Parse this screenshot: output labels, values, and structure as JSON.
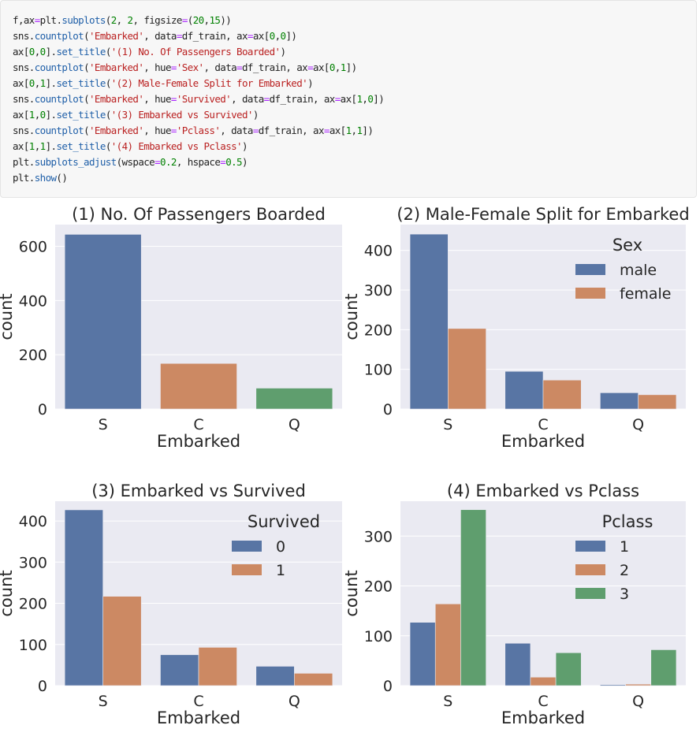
{
  "code_cell": {
    "lines": [
      [
        [
          "name",
          "f"
        ],
        [
          "punc",
          ","
        ],
        [
          "name",
          "ax"
        ],
        [
          "op",
          "="
        ],
        [
          "name",
          "plt"
        ],
        [
          "punc",
          "."
        ],
        [
          "fn",
          "subplots"
        ],
        [
          "punc",
          "("
        ],
        [
          "num",
          "2"
        ],
        [
          "punc",
          ", "
        ],
        [
          "num",
          "2"
        ],
        [
          "punc",
          ", "
        ],
        [
          "name",
          "figsize"
        ],
        [
          "op",
          "="
        ],
        [
          "punc",
          "("
        ],
        [
          "num",
          "20"
        ],
        [
          "punc",
          ","
        ],
        [
          "num",
          "15"
        ],
        [
          "punc",
          "))"
        ]
      ],
      [
        [
          "name",
          "sns"
        ],
        [
          "punc",
          "."
        ],
        [
          "fn",
          "countplot"
        ],
        [
          "punc",
          "("
        ],
        [
          "str",
          "'Embarked'"
        ],
        [
          "punc",
          ", "
        ],
        [
          "name",
          "data"
        ],
        [
          "op",
          "="
        ],
        [
          "name",
          "df_train"
        ],
        [
          "punc",
          ", "
        ],
        [
          "name",
          "ax"
        ],
        [
          "op",
          "="
        ],
        [
          "name",
          "ax"
        ],
        [
          "punc",
          "["
        ],
        [
          "num",
          "0"
        ],
        [
          "punc",
          ","
        ],
        [
          "num",
          "0"
        ],
        [
          "punc",
          "])"
        ]
      ],
      [
        [
          "name",
          "ax"
        ],
        [
          "punc",
          "["
        ],
        [
          "num",
          "0"
        ],
        [
          "punc",
          ","
        ],
        [
          "num",
          "0"
        ],
        [
          "punc",
          "]."
        ],
        [
          "fn",
          "set_title"
        ],
        [
          "punc",
          "("
        ],
        [
          "str",
          "'(1) No. Of Passengers Boarded'"
        ],
        [
          "punc",
          ")"
        ]
      ],
      [
        [
          "name",
          "sns"
        ],
        [
          "punc",
          "."
        ],
        [
          "fn",
          "countplot"
        ],
        [
          "punc",
          "("
        ],
        [
          "str",
          "'Embarked'"
        ],
        [
          "punc",
          ", "
        ],
        [
          "name",
          "hue"
        ],
        [
          "op",
          "="
        ],
        [
          "str",
          "'Sex'"
        ],
        [
          "punc",
          ", "
        ],
        [
          "name",
          "data"
        ],
        [
          "op",
          "="
        ],
        [
          "name",
          "df_train"
        ],
        [
          "punc",
          ", "
        ],
        [
          "name",
          "ax"
        ],
        [
          "op",
          "="
        ],
        [
          "name",
          "ax"
        ],
        [
          "punc",
          "["
        ],
        [
          "num",
          "0"
        ],
        [
          "punc",
          ","
        ],
        [
          "num",
          "1"
        ],
        [
          "punc",
          "])"
        ]
      ],
      [
        [
          "name",
          "ax"
        ],
        [
          "punc",
          "["
        ],
        [
          "num",
          "0"
        ],
        [
          "punc",
          ","
        ],
        [
          "num",
          "1"
        ],
        [
          "punc",
          "]."
        ],
        [
          "fn",
          "set_title"
        ],
        [
          "punc",
          "("
        ],
        [
          "str",
          "'(2) Male-Female Split for Embarked'"
        ],
        [
          "punc",
          ")"
        ]
      ],
      [
        [
          "name",
          "sns"
        ],
        [
          "punc",
          "."
        ],
        [
          "fn",
          "countplot"
        ],
        [
          "punc",
          "("
        ],
        [
          "str",
          "'Embarked'"
        ],
        [
          "punc",
          ", "
        ],
        [
          "name",
          "hue"
        ],
        [
          "op",
          "="
        ],
        [
          "str",
          "'Survived'"
        ],
        [
          "punc",
          ", "
        ],
        [
          "name",
          "data"
        ],
        [
          "op",
          "="
        ],
        [
          "name",
          "df_train"
        ],
        [
          "punc",
          ", "
        ],
        [
          "name",
          "ax"
        ],
        [
          "op",
          "="
        ],
        [
          "name",
          "ax"
        ],
        [
          "punc",
          "["
        ],
        [
          "num",
          "1"
        ],
        [
          "punc",
          ","
        ],
        [
          "num",
          "0"
        ],
        [
          "punc",
          "])"
        ]
      ],
      [
        [
          "name",
          "ax"
        ],
        [
          "punc",
          "["
        ],
        [
          "num",
          "1"
        ],
        [
          "punc",
          ","
        ],
        [
          "num",
          "0"
        ],
        [
          "punc",
          "]."
        ],
        [
          "fn",
          "set_title"
        ],
        [
          "punc",
          "("
        ],
        [
          "str",
          "'(3) Embarked vs Survived'"
        ],
        [
          "punc",
          ")"
        ]
      ],
      [
        [
          "name",
          "sns"
        ],
        [
          "punc",
          "."
        ],
        [
          "fn",
          "countplot"
        ],
        [
          "punc",
          "("
        ],
        [
          "str",
          "'Embarked'"
        ],
        [
          "punc",
          ", "
        ],
        [
          "name",
          "hue"
        ],
        [
          "op",
          "="
        ],
        [
          "str",
          "'Pclass'"
        ],
        [
          "punc",
          ", "
        ],
        [
          "name",
          "data"
        ],
        [
          "op",
          "="
        ],
        [
          "name",
          "df_train"
        ],
        [
          "punc",
          ", "
        ],
        [
          "name",
          "ax"
        ],
        [
          "op",
          "="
        ],
        [
          "name",
          "ax"
        ],
        [
          "punc",
          "["
        ],
        [
          "num",
          "1"
        ],
        [
          "punc",
          ","
        ],
        [
          "num",
          "1"
        ],
        [
          "punc",
          "])"
        ]
      ],
      [
        [
          "name",
          "ax"
        ],
        [
          "punc",
          "["
        ],
        [
          "num",
          "1"
        ],
        [
          "punc",
          ","
        ],
        [
          "num",
          "1"
        ],
        [
          "punc",
          "]."
        ],
        [
          "fn",
          "set_title"
        ],
        [
          "punc",
          "("
        ],
        [
          "str",
          "'(4) Embarked vs Pclass'"
        ],
        [
          "punc",
          ")"
        ]
      ],
      [
        [
          "name",
          "plt"
        ],
        [
          "punc",
          "."
        ],
        [
          "fn",
          "subplots_adjust"
        ],
        [
          "punc",
          "("
        ],
        [
          "name",
          "wspace"
        ],
        [
          "op",
          "="
        ],
        [
          "num",
          "0.2"
        ],
        [
          "punc",
          ", "
        ],
        [
          "name",
          "hspace"
        ],
        [
          "op",
          "="
        ],
        [
          "num",
          "0.5"
        ],
        [
          "punc",
          ")"
        ]
      ],
      [
        [
          "name",
          "plt"
        ],
        [
          "punc",
          "."
        ],
        [
          "fn",
          "show"
        ],
        [
          "punc",
          "()"
        ]
      ]
    ]
  },
  "colors": {
    "plot_bg": "#eaeaf2",
    "grid": "#ffffff",
    "palette": [
      "#5875a4",
      "#cc8963",
      "#5f9e6e"
    ]
  },
  "chart_data": [
    {
      "type": "bar",
      "title": "(1) No. Of Passengers Boarded",
      "xlabel": "Embarked",
      "ylabel": "count",
      "categories": [
        "S",
        "C",
        "Q"
      ],
      "ylim": [
        0,
        680
      ],
      "yticks": [
        0,
        200,
        400,
        600
      ],
      "color_per_category": true,
      "series": [
        {
          "name": "",
          "values": [
            644,
            168,
            77
          ]
        }
      ],
      "legend": null
    },
    {
      "type": "bar",
      "title": "(2) Male-Female Split for Embarked",
      "xlabel": "Embarked",
      "ylabel": "count",
      "categories": [
        "S",
        "C",
        "Q"
      ],
      "ylim": [
        0,
        465
      ],
      "yticks": [
        0,
        100,
        200,
        300,
        400
      ],
      "color_per_category": false,
      "series": [
        {
          "name": "male",
          "values": [
            441,
            95,
            41
          ]
        },
        {
          "name": "female",
          "values": [
            203,
            73,
            36
          ]
        }
      ],
      "legend": {
        "title": "Sex",
        "placement": "top-right"
      }
    },
    {
      "type": "bar",
      "title": "(3) Embarked vs Survived",
      "xlabel": "Embarked",
      "ylabel": "count",
      "categories": [
        "S",
        "C",
        "Q"
      ],
      "ylim": [
        0,
        448
      ],
      "yticks": [
        0,
        100,
        200,
        300,
        400
      ],
      "color_per_category": false,
      "series": [
        {
          "name": "0",
          "values": [
            427,
            75,
            47
          ]
        },
        {
          "name": "1",
          "values": [
            217,
            93,
            30
          ]
        }
      ],
      "legend": {
        "title": "Survived",
        "placement": "top-right"
      }
    },
    {
      "type": "bar",
      "title": "(4) Embarked vs Pclass",
      "xlabel": "Embarked",
      "ylabel": "count",
      "categories": [
        "S",
        "C",
        "Q"
      ],
      "ylim": [
        0,
        370
      ],
      "yticks": [
        0,
        100,
        200,
        300
      ],
      "color_per_category": false,
      "series": [
        {
          "name": "1",
          "values": [
            127,
            85,
            2
          ]
        },
        {
          "name": "2",
          "values": [
            164,
            17,
            3
          ]
        },
        {
          "name": "3",
          "values": [
            353,
            66,
            72
          ]
        }
      ],
      "legend": {
        "title": "Pclass",
        "placement": "top-right"
      }
    }
  ]
}
